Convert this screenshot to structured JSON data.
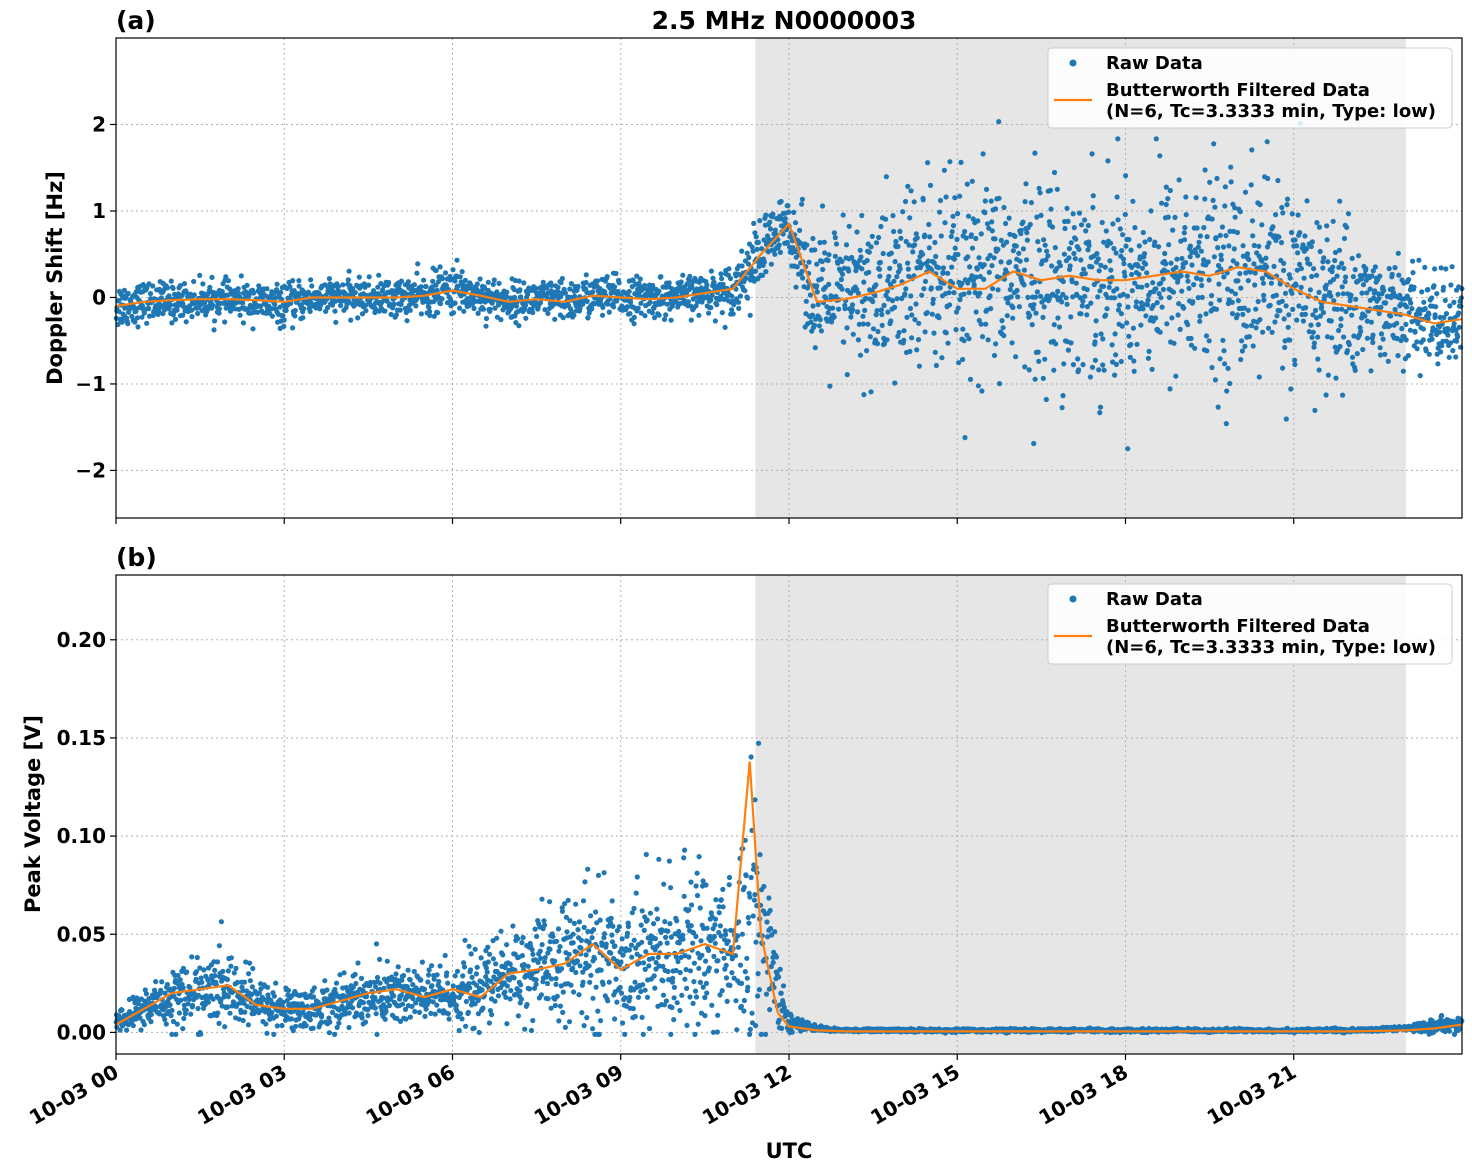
{
  "figure_title": "2.5 MHz N0000003",
  "xlabel": "UTC",
  "colors": {
    "raw": "#1f77b4",
    "filtered": "#ff7f0e",
    "shade": "#e6e6e6"
  },
  "chart_data": [
    {
      "type": "scatter",
      "panel_label": "(a)",
      "ylabel": "Doppler Shift [Hz]",
      "xlim_hours": [
        0,
        24
      ],
      "ylim": [
        -2.55,
        3.0
      ],
      "x_ticks": [
        {
          "hour": 0,
          "label": "10-03 00"
        },
        {
          "hour": 3,
          "label": "10-03 03"
        },
        {
          "hour": 6,
          "label": "10-03 06"
        },
        {
          "hour": 9,
          "label": "10-03 09"
        },
        {
          "hour": 12,
          "label": "10-03 12"
        },
        {
          "hour": 15,
          "label": "10-03 15"
        },
        {
          "hour": 18,
          "label": "10-03 18"
        },
        {
          "hour": 21,
          "label": "10-03 21"
        }
      ],
      "y_ticks": [
        {
          "value": 2,
          "label": "2"
        },
        {
          "value": 1,
          "label": "1"
        },
        {
          "value": 0,
          "label": "0"
        },
        {
          "value": -1,
          "label": "−1"
        },
        {
          "value": -2,
          "label": "−2"
        }
      ],
      "shaded_region_hours": [
        11.4,
        23.0
      ],
      "grid": true,
      "legend": {
        "placement": "top-right",
        "raw": "Raw Data",
        "filtered_line1": "Butterworth Filtered Data",
        "filtered_line2": "(N=6, Tc=3.3333 min, Type: low)"
      },
      "series": [
        {
          "name": "Raw Data",
          "style": "points",
          "x_hours": [
            0,
            0.5,
            1,
            1.5,
            2,
            2.5,
            3,
            3.5,
            4,
            4.5,
            5,
            5.5,
            6,
            6.5,
            7,
            7.5,
            8,
            8.5,
            9,
            9.5,
            10,
            10.5,
            11,
            11.5,
            12,
            12.5,
            13,
            13.5,
            14,
            14.5,
            15,
            15.5,
            16,
            16.5,
            17,
            17.5,
            18,
            18.5,
            19,
            19.5,
            20,
            20.5,
            21,
            21.5,
            22,
            22.5,
            23,
            23.5,
            24
          ],
          "center": [
            -0.1,
            -0.05,
            -0.05,
            -0.03,
            -0.03,
            -0.05,
            -0.1,
            0,
            0,
            0,
            0,
            0.02,
            0.1,
            0.02,
            -0.05,
            -0.02,
            -0.05,
            0.02,
            0,
            0,
            0,
            0.05,
            0.1,
            0.5,
            0.85,
            -0.02,
            0,
            0.05,
            0.15,
            0.3,
            0.1,
            0.15,
            0.3,
            0.2,
            0.25,
            0.2,
            0.2,
            0.25,
            0.3,
            0.25,
            0.3,
            0.3,
            0.1,
            0,
            -0.05,
            -0.1,
            -0.2,
            -0.25,
            -0.3
          ],
          "spread": [
            0.25,
            0.2,
            0.2,
            0.18,
            0.18,
            0.2,
            0.2,
            0.2,
            0.18,
            0.18,
            0.2,
            0.22,
            0.25,
            0.22,
            0.2,
            0.2,
            0.22,
            0.22,
            0.22,
            0.2,
            0.2,
            0.2,
            0.25,
            0.4,
            0.3,
            0.7,
            0.8,
            0.9,
            1.0,
            1.1,
            1.05,
            1.05,
            1.05,
            1.05,
            1.05,
            1.05,
            1.05,
            1.05,
            1.05,
            1.05,
            1.05,
            1.05,
            1.0,
            0.95,
            0.9,
            0.5,
            0.5,
            0.5,
            0.5
          ]
        },
        {
          "name": "Butterworth Filtered Data",
          "style": "line",
          "x_hours": [
            0,
            0.5,
            1,
            1.5,
            2,
            2.5,
            3,
            3.5,
            4,
            4.5,
            5,
            5.5,
            6,
            6.5,
            7,
            7.5,
            8,
            8.5,
            9,
            9.5,
            10,
            10.5,
            11,
            11.5,
            12,
            12.5,
            13,
            13.5,
            14,
            14.5,
            15,
            15.5,
            16,
            16.5,
            17,
            17.5,
            18,
            18.5,
            19,
            19.5,
            20,
            20.5,
            21,
            21.5,
            22,
            22.5,
            23,
            23.5,
            24
          ],
          "values": [
            -0.1,
            -0.05,
            -0.03,
            -0.02,
            -0.02,
            -0.03,
            -0.05,
            0,
            0,
            0,
            0,
            0.02,
            0.08,
            0.02,
            -0.05,
            -0.02,
            -0.05,
            0.02,
            0,
            -0.02,
            0,
            0.05,
            0.1,
            0.5,
            0.85,
            -0.05,
            -0.02,
            0.05,
            0.15,
            0.3,
            0.1,
            0.1,
            0.3,
            0.2,
            0.25,
            0.2,
            0.2,
            0.25,
            0.3,
            0.25,
            0.35,
            0.3,
            0.1,
            -0.05,
            -0.1,
            -0.15,
            -0.2,
            -0.3,
            -0.25
          ]
        }
      ]
    },
    {
      "type": "scatter",
      "panel_label": "(b)",
      "ylabel": "Peak Voltage [V]",
      "xlim_hours": [
        0,
        24
      ],
      "ylim": [
        -0.011,
        0.233
      ],
      "x_ticks": [
        {
          "hour": 0,
          "label": "10-03 00"
        },
        {
          "hour": 3,
          "label": "10-03 03"
        },
        {
          "hour": 6,
          "label": "10-03 06"
        },
        {
          "hour": 9,
          "label": "10-03 09"
        },
        {
          "hour": 12,
          "label": "10-03 12"
        },
        {
          "hour": 15,
          "label": "10-03 15"
        },
        {
          "hour": 18,
          "label": "10-03 18"
        },
        {
          "hour": 21,
          "label": "10-03 21"
        }
      ],
      "y_ticks": [
        {
          "value": 0.2,
          "label": "0.20"
        },
        {
          "value": 0.15,
          "label": "0.15"
        },
        {
          "value": 0.1,
          "label": "0.10"
        },
        {
          "value": 0.05,
          "label": "0.05"
        },
        {
          "value": 0,
          "label": "0.00"
        }
      ],
      "shaded_region_hours": [
        11.4,
        23.0
      ],
      "grid": true,
      "legend": {
        "placement": "top-right",
        "raw": "Raw Data",
        "filtered_line1": "Butterworth Filtered Data",
        "filtered_line2": "(N=6, Tc=3.3333 min, Type: low)"
      },
      "series": [
        {
          "name": "Raw Data",
          "style": "points",
          "x_hours": [
            0,
            0.5,
            1,
            1.5,
            2,
            2.5,
            3,
            3.5,
            4,
            4.5,
            5,
            5.5,
            6,
            6.5,
            7,
            7.5,
            8,
            8.5,
            9,
            9.5,
            10,
            10.5,
            11,
            11.3,
            11.5,
            11.8,
            12,
            12.5,
            13,
            14,
            15,
            16,
            17,
            18,
            19,
            20,
            21,
            22,
            23,
            23.5,
            24
          ],
          "center": [
            0.005,
            0.012,
            0.018,
            0.02,
            0.022,
            0.015,
            0.012,
            0.012,
            0.016,
            0.018,
            0.02,
            0.018,
            0.02,
            0.022,
            0.03,
            0.032,
            0.035,
            0.04,
            0.035,
            0.04,
            0.038,
            0.045,
            0.04,
            0.06,
            0.06,
            0.02,
            0.005,
            0.002,
            0.001,
            0.001,
            0.001,
            0.001,
            0.001,
            0.001,
            0.001,
            0.001,
            0.001,
            0.001,
            0.002,
            0.003,
            0.005
          ],
          "spread": [
            0.004,
            0.01,
            0.014,
            0.016,
            0.017,
            0.012,
            0.01,
            0.01,
            0.012,
            0.014,
            0.016,
            0.014,
            0.015,
            0.017,
            0.022,
            0.024,
            0.028,
            0.032,
            0.03,
            0.034,
            0.034,
            0.038,
            0.035,
            0.08,
            0.06,
            0.015,
            0.004,
            0.001,
            0.0008,
            0.0008,
            0.0008,
            0.0008,
            0.0008,
            0.0008,
            0.0008,
            0.0008,
            0.0008,
            0.0008,
            0.001,
            0.003,
            0.004
          ]
        },
        {
          "name": "Butterworth Filtered Data",
          "style": "line",
          "x_hours": [
            0,
            0.5,
            1,
            1.5,
            2,
            2.5,
            3,
            3.5,
            4,
            4.5,
            5,
            5.5,
            6,
            6.5,
            7,
            7.5,
            8,
            8.5,
            9,
            9.5,
            10,
            10.5,
            11,
            11.3,
            11.5,
            11.8,
            12,
            12.5,
            13,
            14,
            15,
            16,
            17,
            18,
            19,
            20,
            21,
            22,
            23,
            23.5,
            24
          ],
          "values": [
            0.004,
            0.012,
            0.02,
            0.022,
            0.024,
            0.014,
            0.012,
            0.012,
            0.016,
            0.02,
            0.022,
            0.018,
            0.022,
            0.018,
            0.03,
            0.032,
            0.035,
            0.045,
            0.032,
            0.04,
            0.04,
            0.045,
            0.04,
            0.138,
            0.05,
            0.01,
            0.003,
            0.001,
            0.0005,
            0.0005,
            0.0005,
            0.0005,
            0.0005,
            0.0005,
            0.0005,
            0.0005,
            0.0005,
            0.0005,
            0.001,
            0.002,
            0.004
          ]
        }
      ]
    }
  ]
}
